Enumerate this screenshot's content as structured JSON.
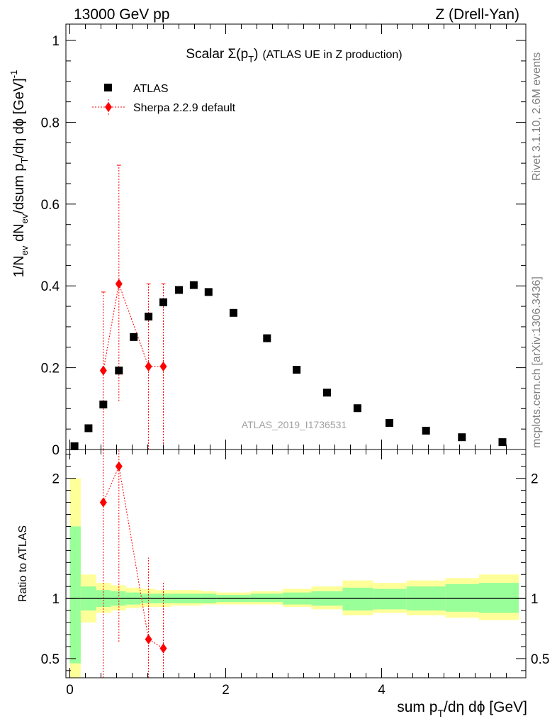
{
  "header": {
    "energy_label": "13000 GeV pp",
    "process_label": "Z (Drell-Yan)",
    "rivet_label": "Rivet 3.1.10,  2.6M events",
    "mcplots_label": "mcplots.cern.ch [arXiv:1306.3436]",
    "analysis_id": "ATLAS_2019_I1736531"
  },
  "chart_data": [
    {
      "type": "scatter",
      "title_main": "Scalar Σ(p",
      "title_sub": "T",
      "title_close": ")",
      "title_rest": "(ATLAS UE in Z production)",
      "ylabel_left": "1/N",
      "ylabel_ev1": "ev",
      "ylabel_mid1": " dN",
      "ylabel_ev2": "ev",
      "ylabel_mid2": "/dsum p",
      "ylabel_T": "T",
      "ylabel_mid3": "/dη dϕ  [GeV]",
      "ylabel_exp": "-1",
      "ylim": [
        0,
        1.04
      ],
      "xlim": [
        -0.05,
        5.85
      ],
      "yticks": [
        0,
        0.2,
        0.4,
        0.6,
        0.8,
        1
      ],
      "ytick_labels": [
        "0",
        "0.2",
        "0.4",
        "0.6",
        "0.8",
        "1"
      ],
      "legend_position": "top-left",
      "series": [
        {
          "name": "ATLAS",
          "color": "#000000",
          "marker": "square",
          "x": [
            0.06,
            0.24,
            0.43,
            0.63,
            0.82,
            1.01,
            1.2,
            1.4,
            1.59,
            1.78,
            2.1,
            2.53,
            2.91,
            3.3,
            3.69,
            4.1,
            4.57,
            5.03,
            5.55
          ],
          "y": [
            0.008,
            0.052,
            0.11,
            0.193,
            0.275,
            0.325,
            0.36,
            0.39,
            0.402,
            0.385,
            0.334,
            0.272,
            0.195,
            0.139,
            0.101,
            0.065,
            0.046,
            0.03,
            0.018
          ]
        },
        {
          "name": "Sherpa 2.2.9 default",
          "color": "#ff0000",
          "marker": "diamond",
          "x": [
            0.43,
            0.63,
            1.01,
            1.2
          ],
          "y": [
            0.193,
            0.405,
            0.203,
            0.203
          ],
          "ylo": [
            0.0,
            0.118,
            0.0,
            0.0
          ],
          "yhi": [
            0.385,
            0.695,
            0.405,
            0.405
          ]
        }
      ]
    },
    {
      "type": "area",
      "ylabel": "Ratio to ATLAS",
      "xlabel_main": "sum p",
      "xlabel_sub": "T",
      "xlabel_rest": "/dη dϕ [GeV]",
      "ylim": [
        0.34,
        2.24
      ],
      "xlim": [
        -0.05,
        5.85
      ],
      "xticks": [
        0,
        2,
        4
      ],
      "xtick_labels": [
        "0",
        "2",
        "4"
      ],
      "yticks": [
        0.5,
        1,
        2
      ],
      "ytick_labels": [
        "0.5",
        "1",
        "2"
      ],
      "bands": {
        "edges": [
          0.0,
          0.14,
          0.34,
          0.53,
          0.72,
          0.91,
          1.1,
          1.3,
          1.5,
          1.69,
          1.88,
          2.32,
          2.73,
          3.1,
          3.5,
          3.89,
          4.32,
          4.82,
          5.25,
          5.76
        ],
        "inner_lo": [
          0.46,
          0.9,
          0.93,
          0.94,
          0.95,
          0.96,
          0.96,
          0.96,
          0.96,
          0.96,
          0.97,
          0.97,
          0.95,
          0.94,
          0.9,
          0.91,
          0.9,
          0.89,
          0.88
        ],
        "inner_hi": [
          1.6,
          1.1,
          1.07,
          1.06,
          1.05,
          1.04,
          1.04,
          1.04,
          1.04,
          1.04,
          1.03,
          1.04,
          1.05,
          1.06,
          1.09,
          1.08,
          1.1,
          1.12,
          1.13
        ],
        "outer_lo": [
          0.34,
          0.8,
          0.88,
          0.9,
          0.92,
          0.93,
          0.93,
          0.94,
          0.94,
          0.95,
          0.95,
          0.95,
          0.93,
          0.91,
          0.86,
          0.88,
          0.86,
          0.84,
          0.82
        ],
        "outer_hi": [
          2.0,
          1.2,
          1.13,
          1.11,
          1.09,
          1.08,
          1.07,
          1.07,
          1.07,
          1.06,
          1.05,
          1.06,
          1.08,
          1.1,
          1.15,
          1.13,
          1.15,
          1.17,
          1.2
        ],
        "inner_color": "#99ff99",
        "outer_color": "#ffff99"
      },
      "series": [
        {
          "name": "Sherpa 2.2.9 default",
          "color": "#ff0000",
          "x": [
            0.43,
            0.63,
            1.01,
            1.2
          ],
          "y": [
            1.8,
            2.1,
            0.66,
            0.585
          ],
          "ylo": [
            0.34,
            0.64,
            0.34,
            0.34
          ],
          "yhi": [
            2.24,
            2.24,
            1.34,
            1.14
          ]
        }
      ]
    }
  ]
}
